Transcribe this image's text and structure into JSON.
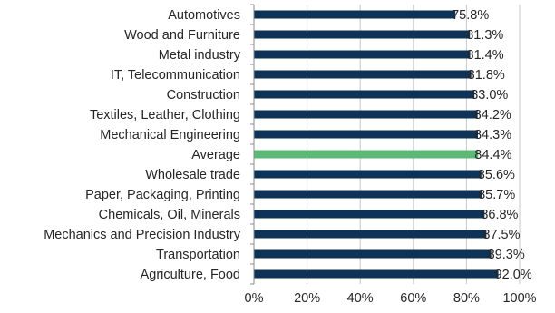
{
  "chart_data": {
    "type": "bar",
    "orientation": "horizontal",
    "categories": [
      "Automotives",
      "Wood and Furniture",
      "Metal industry",
      "IT, Telecommunication",
      "Construction",
      "Textiles, Leather, Clothing",
      "Mechanical Engineering",
      "Average",
      "Wholesale trade",
      "Paper, Packaging, Printing",
      "Chemicals, Oil, Minerals",
      "Mechanics and Precision Industry",
      "Transportation",
      "Agriculture, Food"
    ],
    "values": [
      75.8,
      81.3,
      81.4,
      81.8,
      83.0,
      84.2,
      84.3,
      84.4,
      85.6,
      85.7,
      86.8,
      87.5,
      89.3,
      92.0
    ],
    "data_labels": [
      "75.8%",
      "81.3%",
      "81.4%",
      "81.8%",
      "83.0%",
      "84.2%",
      "84.3%",
      "84.4%",
      "85.6%",
      "85.7%",
      "86.8%",
      "87.5%",
      "89.3%",
      "92.0%"
    ],
    "highlight_category": "Average",
    "xlim": [
      0,
      100
    ],
    "x_ticks": [
      0,
      20,
      40,
      60,
      80,
      100
    ],
    "x_tick_labels": [
      "0%",
      "20%",
      "40%",
      "60%",
      "80%",
      "100%"
    ],
    "gridlines": "vertical",
    "title": "",
    "xlabel": "",
    "ylabel": "",
    "legend": "none",
    "colors": {
      "bar": "#0f3257",
      "highlight": "#5cb877",
      "gridline": "#c8c8c8",
      "axis": "#8c8c8c",
      "text": "#262626"
    }
  }
}
